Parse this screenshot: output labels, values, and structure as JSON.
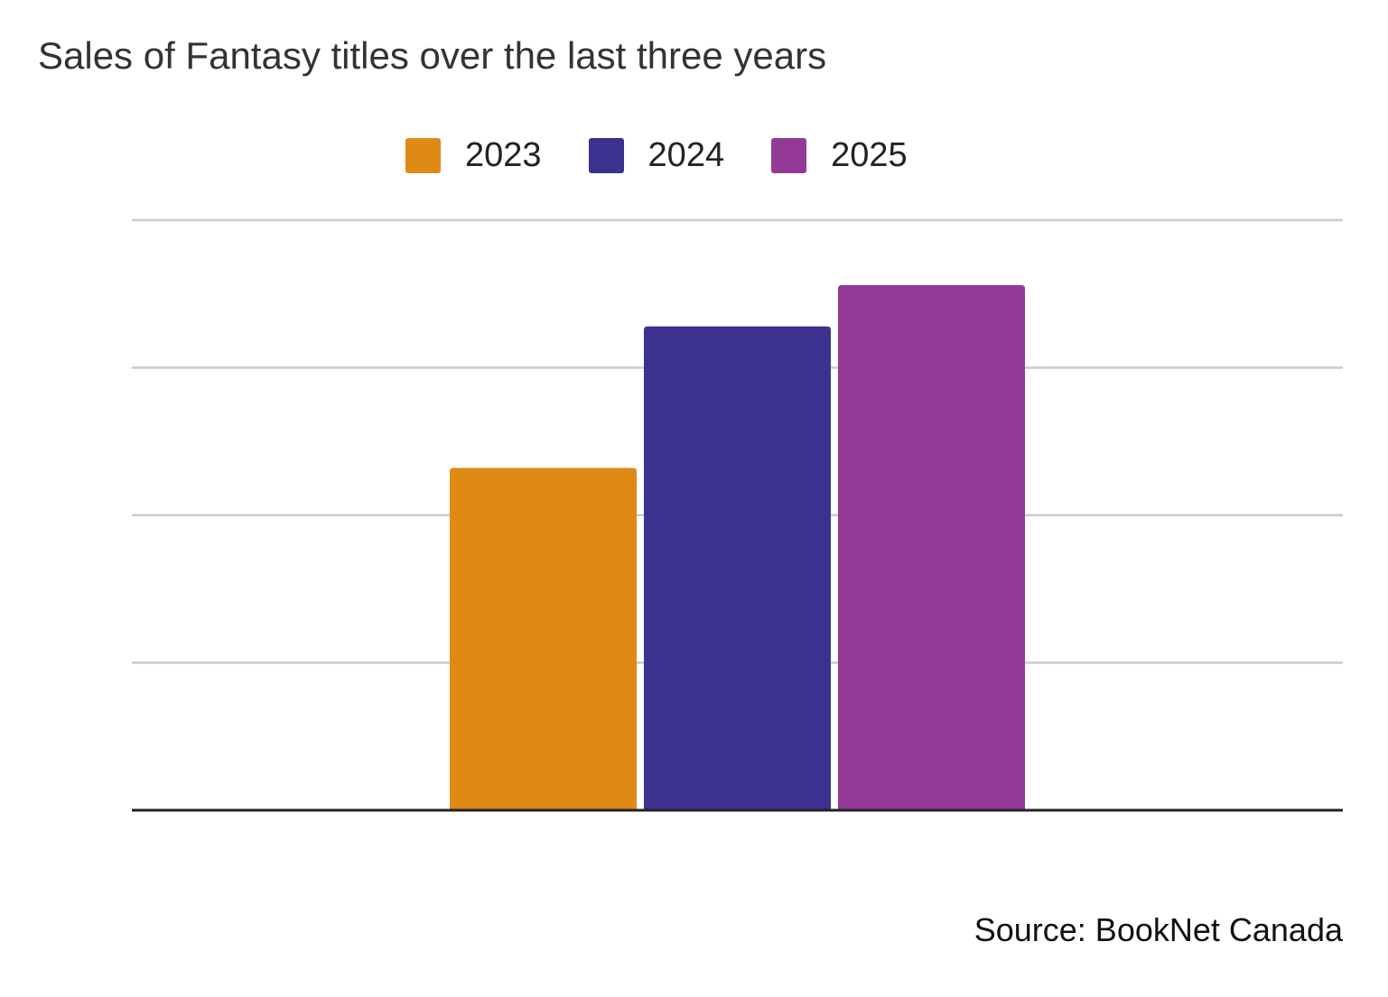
{
  "chart_data": {
    "type": "bar",
    "title": "Sales of Fantasy titles over the last three years",
    "categories": [
      ""
    ],
    "series": [
      {
        "name": "2023",
        "values": [
          58
        ],
        "color": "#E08A16"
      },
      {
        "name": "2024",
        "values": [
          82
        ],
        "color": "#3D318F"
      },
      {
        "name": "2025",
        "values": [
          89
        ],
        "color": "#923A95"
      }
    ],
    "xlabel": "",
    "ylabel": "",
    "ylim": [
      0,
      100
    ],
    "y_ticks": [
      0,
      25,
      50,
      75,
      100
    ],
    "grid": true,
    "legend_position": "top-center",
    "y_tick_labels_shown": false,
    "source": "Source: BookNet Canada"
  }
}
